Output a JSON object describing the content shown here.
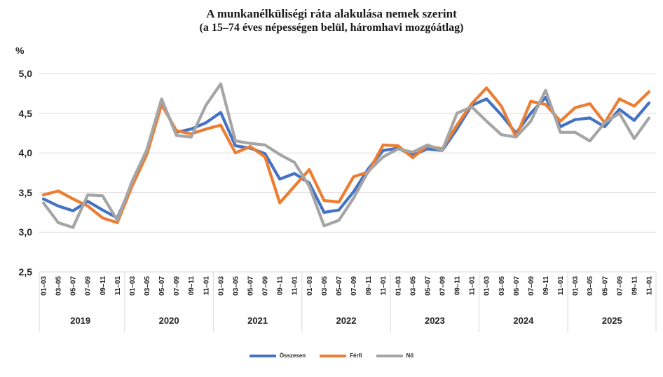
{
  "title": {
    "line1": "A munkanélküliségi  ráta alakulása nemek szerint",
    "line2": "(a 15–74 éves népességen belül, háromhavi mozgóátlag)"
  },
  "y_axis": {
    "unit_label": "%",
    "ticks": [
      "5,0",
      "4,5",
      "4,0",
      "3,5",
      "3,0",
      "2,5"
    ]
  },
  "x_axis": {
    "period_labels": [
      "01–03",
      "03–05",
      "05–07",
      "07–09",
      "09–11",
      "11–01"
    ],
    "years": [
      "2019",
      "2020",
      "2021",
      "2022",
      "2023",
      "2024",
      "2025"
    ]
  },
  "legend": {
    "items": [
      {
        "label": "Összesen",
        "color": "#4472C4"
      },
      {
        "label": "Férfi",
        "color": "#ED7D31"
      },
      {
        "label": "Nő",
        "color": "#A5A5A5"
      }
    ]
  },
  "chart_data": {
    "type": "line",
    "title": "A munkanélküliségi ráta alakulása nemek szerint",
    "subtitle": "(a 15–74 éves népességen belül, háromhavi mozgóátlag)",
    "ylabel": "%",
    "ylim": [
      2.5,
      5.0
    ],
    "ytick_step": 0.5,
    "grid": true,
    "legend_position": "bottom",
    "years": [
      "2019",
      "2020",
      "2021",
      "2022",
      "2023",
      "2024",
      "2025"
    ],
    "periods_per_year": [
      "01–03",
      "03–05",
      "05–07",
      "07–09",
      "09–11",
      "11–01"
    ],
    "categories": [
      "2019 01–03",
      "2019 03–05",
      "2019 05–07",
      "2019 07–09",
      "2019 09–11",
      "2019 11–01",
      "2020 01–03",
      "2020 03–05",
      "2020 05–07",
      "2020 07–09",
      "2020 09–11",
      "2020 11–01",
      "2021 01–03",
      "2021 03–05",
      "2021 05–07",
      "2021 07–09",
      "2021 09–11",
      "2021 11–01",
      "2022 01–03",
      "2022 03–05",
      "2022 05–07",
      "2022 07–09",
      "2022 09–11",
      "2022 11–01",
      "2023 01–03",
      "2023 03–05",
      "2023 05–07",
      "2023 07–09",
      "2023 09–11",
      "2023 11–01",
      "2024 01–03",
      "2024 03–05",
      "2024 05–07",
      "2024 07–09",
      "2024 09–11",
      "2024 11–01",
      "2025 01–03",
      "2025 03–05",
      "2025 05–07",
      "2025 07–09",
      "2025 09–11",
      "2025 11–01"
    ],
    "series": [
      {
        "name": "Összesen",
        "color": "#4472C4",
        "values": [
          3.42,
          3.33,
          3.27,
          3.39,
          3.28,
          3.18,
          3.6,
          4.0,
          4.64,
          4.26,
          4.3,
          4.38,
          4.51,
          4.09,
          4.06,
          3.99,
          3.67,
          3.74,
          3.62,
          3.25,
          3.28,
          3.51,
          3.8,
          4.03,
          4.06,
          3.97,
          4.05,
          4.03,
          4.3,
          4.6,
          4.68,
          4.48,
          4.25,
          4.5,
          4.7,
          4.33,
          4.42,
          4.44,
          4.33,
          4.55,
          4.41,
          4.63
        ]
      },
      {
        "name": "Férfi",
        "color": "#ED7D31",
        "values": [
          3.47,
          3.52,
          3.42,
          3.33,
          3.18,
          3.12,
          3.58,
          3.98,
          4.61,
          4.28,
          4.24,
          4.3,
          4.35,
          4.0,
          4.08,
          3.95,
          3.37,
          3.58,
          3.79,
          3.4,
          3.38,
          3.7,
          3.76,
          4.1,
          4.09,
          3.94,
          4.09,
          4.05,
          4.35,
          4.62,
          4.82,
          4.59,
          4.2,
          4.65,
          4.61,
          4.4,
          4.57,
          4.62,
          4.38,
          4.68,
          4.59,
          4.77
        ]
      },
      {
        "name": "Nő",
        "color": "#A5A5A5",
        "values": [
          3.37,
          3.12,
          3.06,
          3.47,
          3.46,
          3.15,
          3.64,
          4.04,
          4.68,
          4.22,
          4.2,
          4.6,
          4.87,
          4.15,
          4.12,
          4.1,
          3.98,
          3.88,
          3.58,
          3.08,
          3.15,
          3.43,
          3.77,
          3.95,
          4.05,
          4.01,
          4.1,
          4.03,
          4.5,
          4.58,
          4.4,
          4.23,
          4.2,
          4.4,
          4.79,
          4.26,
          4.26,
          4.15,
          4.38,
          4.5,
          4.18,
          4.44
        ]
      }
    ]
  }
}
